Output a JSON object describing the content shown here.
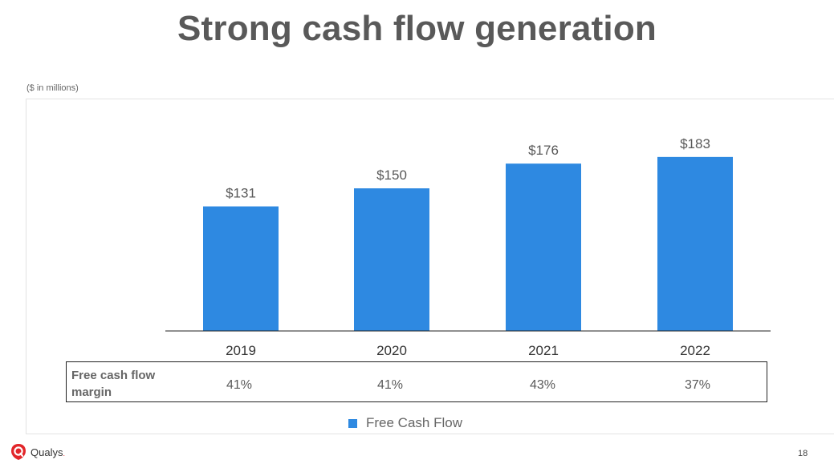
{
  "slide": {
    "title": "Strong cash flow generation",
    "units_note": "($ in millions)",
    "page_number": "18",
    "logo_text": "Qualys",
    "logo_dot": "."
  },
  "colors": {
    "bar": "#2e89e1",
    "title": "#595959",
    "logo_red": "#e2262a"
  },
  "chart_data": {
    "type": "bar",
    "categories": [
      "2019",
      "2020",
      "2021",
      "2022"
    ],
    "series": [
      {
        "name": "Free Cash Flow",
        "values": [
          131,
          150,
          176,
          183
        ],
        "labels": [
          "$131",
          "$150",
          "$176",
          "$183"
        ]
      }
    ],
    "ylim": [
      0,
      209
    ],
    "grid": false,
    "legend_position": "bottom"
  },
  "margin_table": {
    "row_label_line1": "Free cash flow",
    "row_label_line2": "margin",
    "values": [
      "41%",
      "41%",
      "43%",
      "37%"
    ]
  },
  "legend": {
    "label": "Free Cash Flow"
  }
}
